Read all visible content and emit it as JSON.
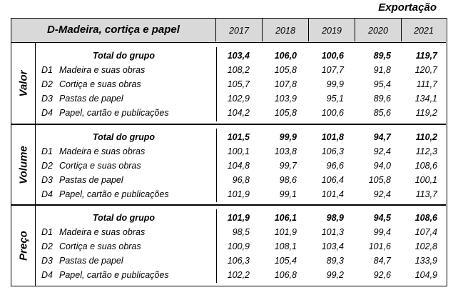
{
  "caption": "Exportação",
  "table": {
    "title": "D-Madeira, cortiça e papel",
    "years": [
      "2017",
      "2018",
      "2019",
      "2020",
      "2021"
    ],
    "sections": [
      {
        "label": "Valor",
        "rows": [
          {
            "code": "",
            "label": "Total do grupo",
            "total": true,
            "values": [
              "103,4",
              "106,0",
              "100,6",
              "89,5",
              "119,7"
            ]
          },
          {
            "code": "D1",
            "label": "Madeira e suas obras",
            "values": [
              "108,2",
              "105,8",
              "107,7",
              "91,8",
              "120,7"
            ]
          },
          {
            "code": "D2",
            "label": "Cortiça e suas obras",
            "values": [
              "105,7",
              "107,8",
              "99,9",
              "95,4",
              "111,7"
            ]
          },
          {
            "code": "D3",
            "label": "Pastas de papel",
            "values": [
              "102,9",
              "103,9",
              "95,1",
              "89,6",
              "134,1"
            ]
          },
          {
            "code": "D4",
            "label": "Papel, cartão e publicações",
            "values": [
              "104,2",
              "105,8",
              "100,6",
              "85,6",
              "119,2"
            ]
          }
        ]
      },
      {
        "label": "Volume",
        "rows": [
          {
            "code": "",
            "label": "Total do grupo",
            "total": true,
            "values": [
              "101,5",
              "99,9",
              "101,8",
              "94,7",
              "110,2"
            ]
          },
          {
            "code": "D1",
            "label": "Madeira e suas obras",
            "values": [
              "100,1",
              "103,8",
              "106,3",
              "92,4",
              "112,3"
            ]
          },
          {
            "code": "D2",
            "label": "Cortiça e suas obras",
            "values": [
              "104,8",
              "99,7",
              "96,6",
              "94,0",
              "108,6"
            ]
          },
          {
            "code": "D3",
            "label": "Pastas de papel",
            "values": [
              "96,8",
              "98,6",
              "106,4",
              "105,8",
              "100,1"
            ]
          },
          {
            "code": "D4",
            "label": "Papel, cartão e publicações",
            "values": [
              "101,9",
              "99,1",
              "101,4",
              "92,4",
              "113,7"
            ]
          }
        ]
      },
      {
        "label": "Preço",
        "rows": [
          {
            "code": "",
            "label": "Total do grupo",
            "total": true,
            "values": [
              "101,9",
              "106,1",
              "98,9",
              "94,5",
              "108,6"
            ]
          },
          {
            "code": "D1",
            "label": "Madeira e suas obras",
            "values": [
              "98,5",
              "101,9",
              "101,3",
              "99,4",
              "107,4"
            ]
          },
          {
            "code": "D2",
            "label": "Cortiça e suas obras",
            "values": [
              "100,9",
              "108,1",
              "103,4",
              "101,6",
              "102,8"
            ]
          },
          {
            "code": "D3",
            "label": "Pastas de papel",
            "values": [
              "106,3",
              "105,4",
              "89,3",
              "84,7",
              "133,9"
            ]
          },
          {
            "code": "D4",
            "label": "Papel, cartão e publicações",
            "values": [
              "102,2",
              "106,8",
              "99,2",
              "92,6",
              "104,9"
            ]
          }
        ]
      }
    ]
  }
}
